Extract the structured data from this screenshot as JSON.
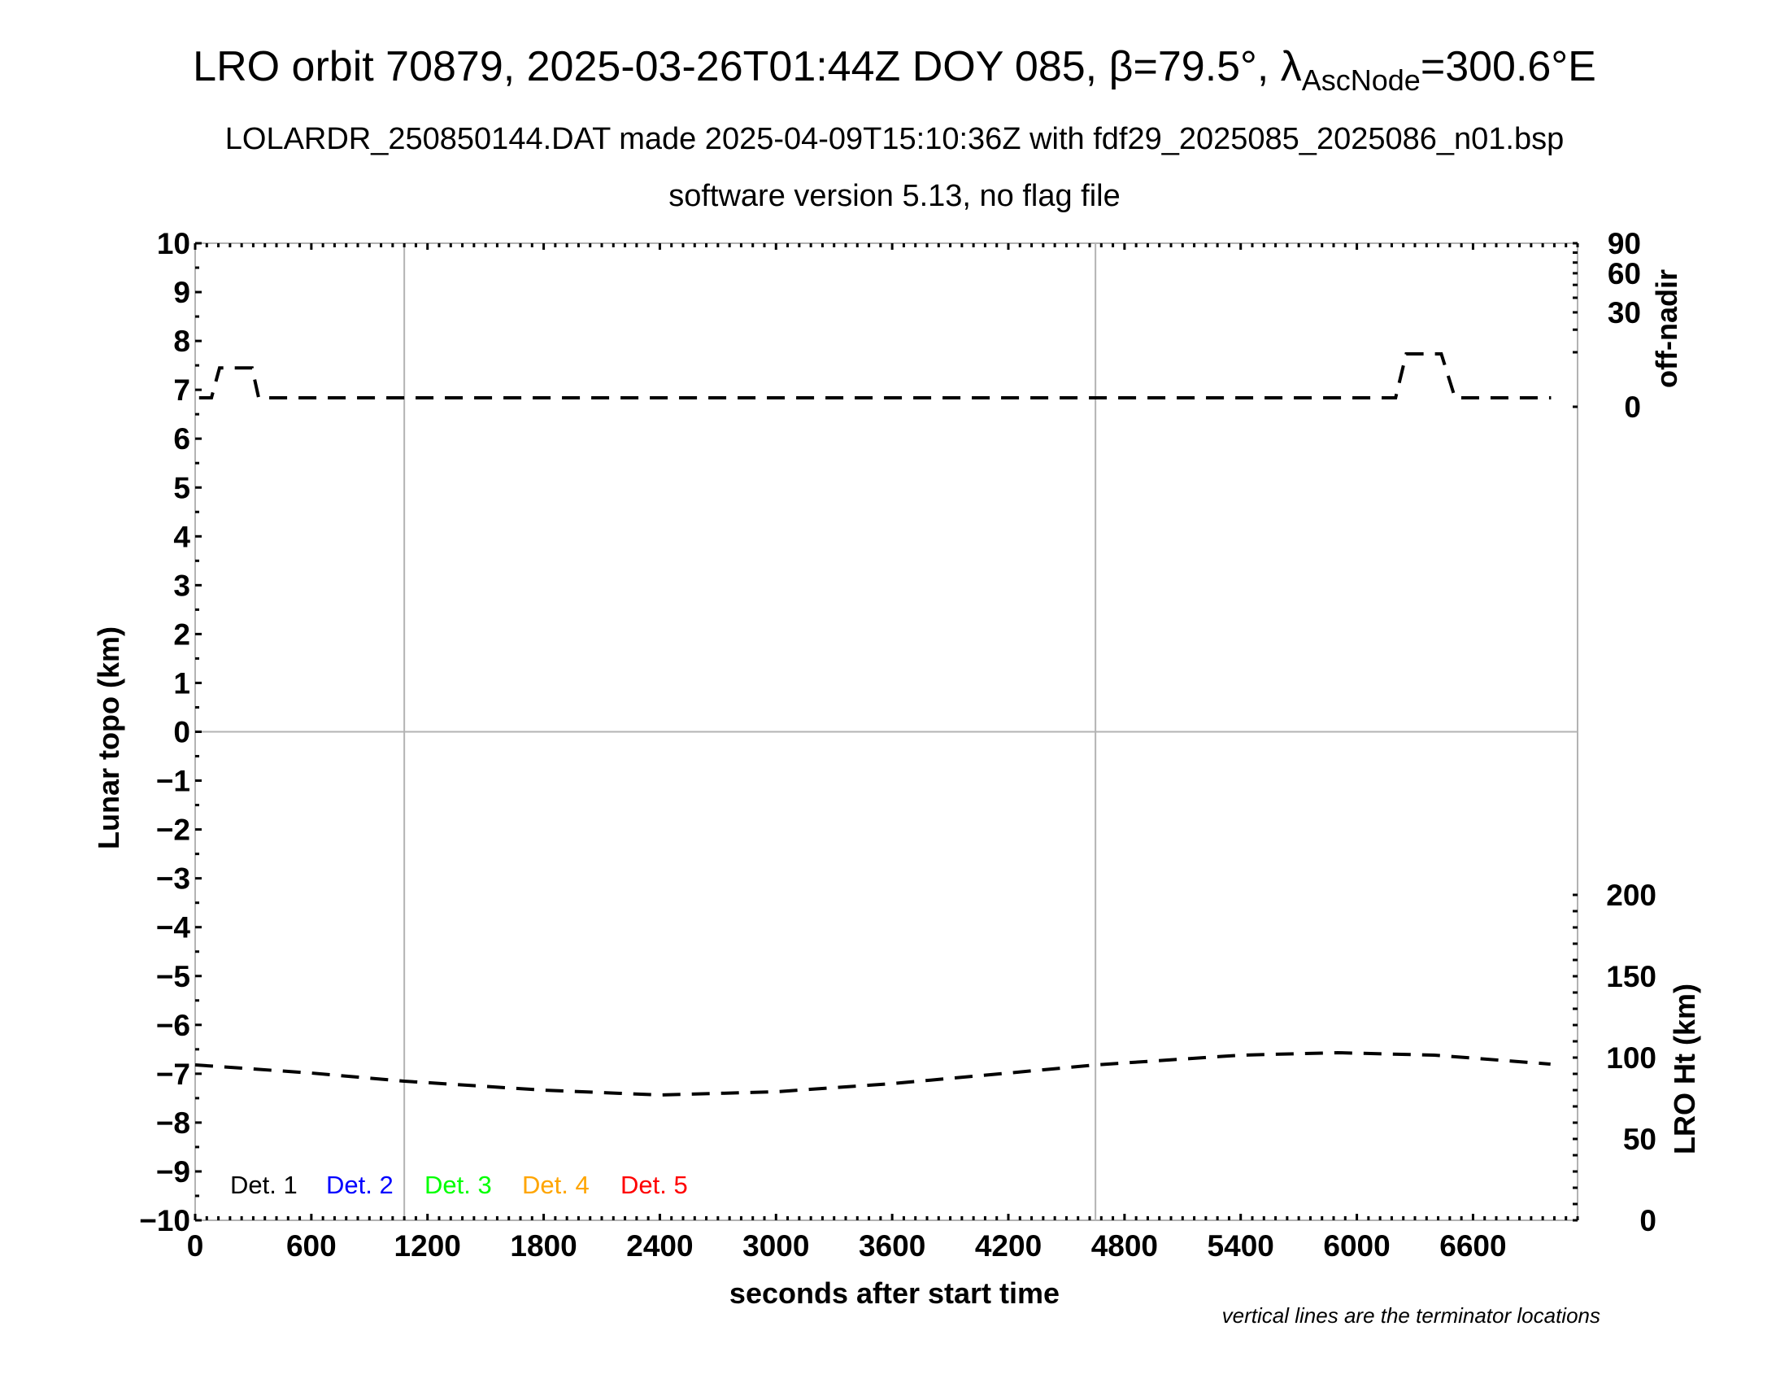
{
  "header": {
    "title_main": "LRO orbit 70879, 2025-03-26T01:44Z DOY 085, β=79.5°, λ",
    "title_sub": "AscNode",
    "title_end": "=300.6°E",
    "subtitle": "LOLARDR_250850144.DAT made 2025-04-09T15:10:36Z with fdf29_2025085_2025086_n01.bsp",
    "subtitle2": "software version 5.13, no flag file"
  },
  "chart_data": {
    "type": "line",
    "title": "LRO orbit 70879, 2025-03-26T01:44Z DOY 085, β=79.5°, λAscNode=300.6°E",
    "xlabel": "seconds after start time",
    "ylabel": "Lunar topo (km)",
    "y2label_top": "off-nadir",
    "y2label_bottom": "LRO Ht (km)",
    "note": "vertical lines are the terminator locations",
    "xlim": [
      0,
      7140
    ],
    "ylim": [
      -10,
      10
    ],
    "offnadir_lim": [
      0,
      90
    ],
    "height_lim": [
      0,
      200
    ],
    "grid": false,
    "x_ticks": [
      0,
      600,
      1200,
      1800,
      2400,
      3000,
      3600,
      4200,
      4800,
      5400,
      6000,
      6600
    ],
    "x_tick_labels": [
      "0",
      "600",
      "1200",
      "1800",
      "2400",
      "3000",
      "3600",
      "4200",
      "4800",
      "5400",
      "6000",
      "6600"
    ],
    "y_ticks": [
      10,
      9,
      8,
      7,
      6,
      5,
      4,
      3,
      2,
      1,
      0,
      -1,
      -2,
      -3,
      -4,
      -5,
      -6,
      -7,
      -8,
      -9,
      -10
    ],
    "y_tick_labels": [
      "10",
      "9",
      "8",
      "7",
      "6",
      "5",
      "4",
      "3",
      "2",
      "1",
      "0",
      "−1",
      "−2",
      "−3",
      "−4",
      "−5",
      "−6",
      "−7",
      "−8",
      "−9",
      "−10"
    ],
    "offnadir_ticks": [
      90,
      60,
      30,
      0
    ],
    "offnadir_tick_labels": [
      "90",
      "60",
      "30",
      "0"
    ],
    "height_ticks": [
      200,
      150,
      100,
      50,
      0
    ],
    "height_tick_labels": [
      "200",
      "150",
      "100",
      "50",
      "0"
    ],
    "terminators": [
      1080,
      4650
    ],
    "legend": [
      {
        "label": "Det. 1",
        "color": "#000000"
      },
      {
        "label": "Det. 2",
        "color": "#0000ff"
      },
      {
        "label": "Det. 3",
        "color": "#00ff00"
      },
      {
        "label": "Det. 4",
        "color": "#ffa500"
      },
      {
        "label": "Det. 5",
        "color": "#ff0000"
      }
    ],
    "series": [
      {
        "name": "off-nadir (deg)",
        "axis": "offnadir",
        "style": "dashed",
        "color": "#000000",
        "points": [
          [
            20,
            0.27
          ],
          [
            84,
            0.27
          ],
          [
            126,
            5.1
          ],
          [
            294,
            5.1
          ],
          [
            328,
            0.27
          ],
          [
            6200,
            0.27
          ],
          [
            6255,
            9.4
          ],
          [
            6436,
            9.4
          ],
          [
            6507,
            0.27
          ],
          [
            7003,
            0.27
          ]
        ]
      },
      {
        "name": "LRO Ht (km)",
        "axis": "height",
        "style": "dashed",
        "color": "#000000",
        "points": [
          [
            0,
            95.5
          ],
          [
            600,
            90.5
          ],
          [
            1080,
            85.5
          ],
          [
            1800,
            80
          ],
          [
            2400,
            77
          ],
          [
            3000,
            79
          ],
          [
            3600,
            84
          ],
          [
            4200,
            90.5
          ],
          [
            4650,
            95.5
          ],
          [
            5400,
            101.5
          ],
          [
            5900,
            103
          ],
          [
            6400,
            101.5
          ],
          [
            7000,
            96
          ]
        ]
      }
    ]
  }
}
